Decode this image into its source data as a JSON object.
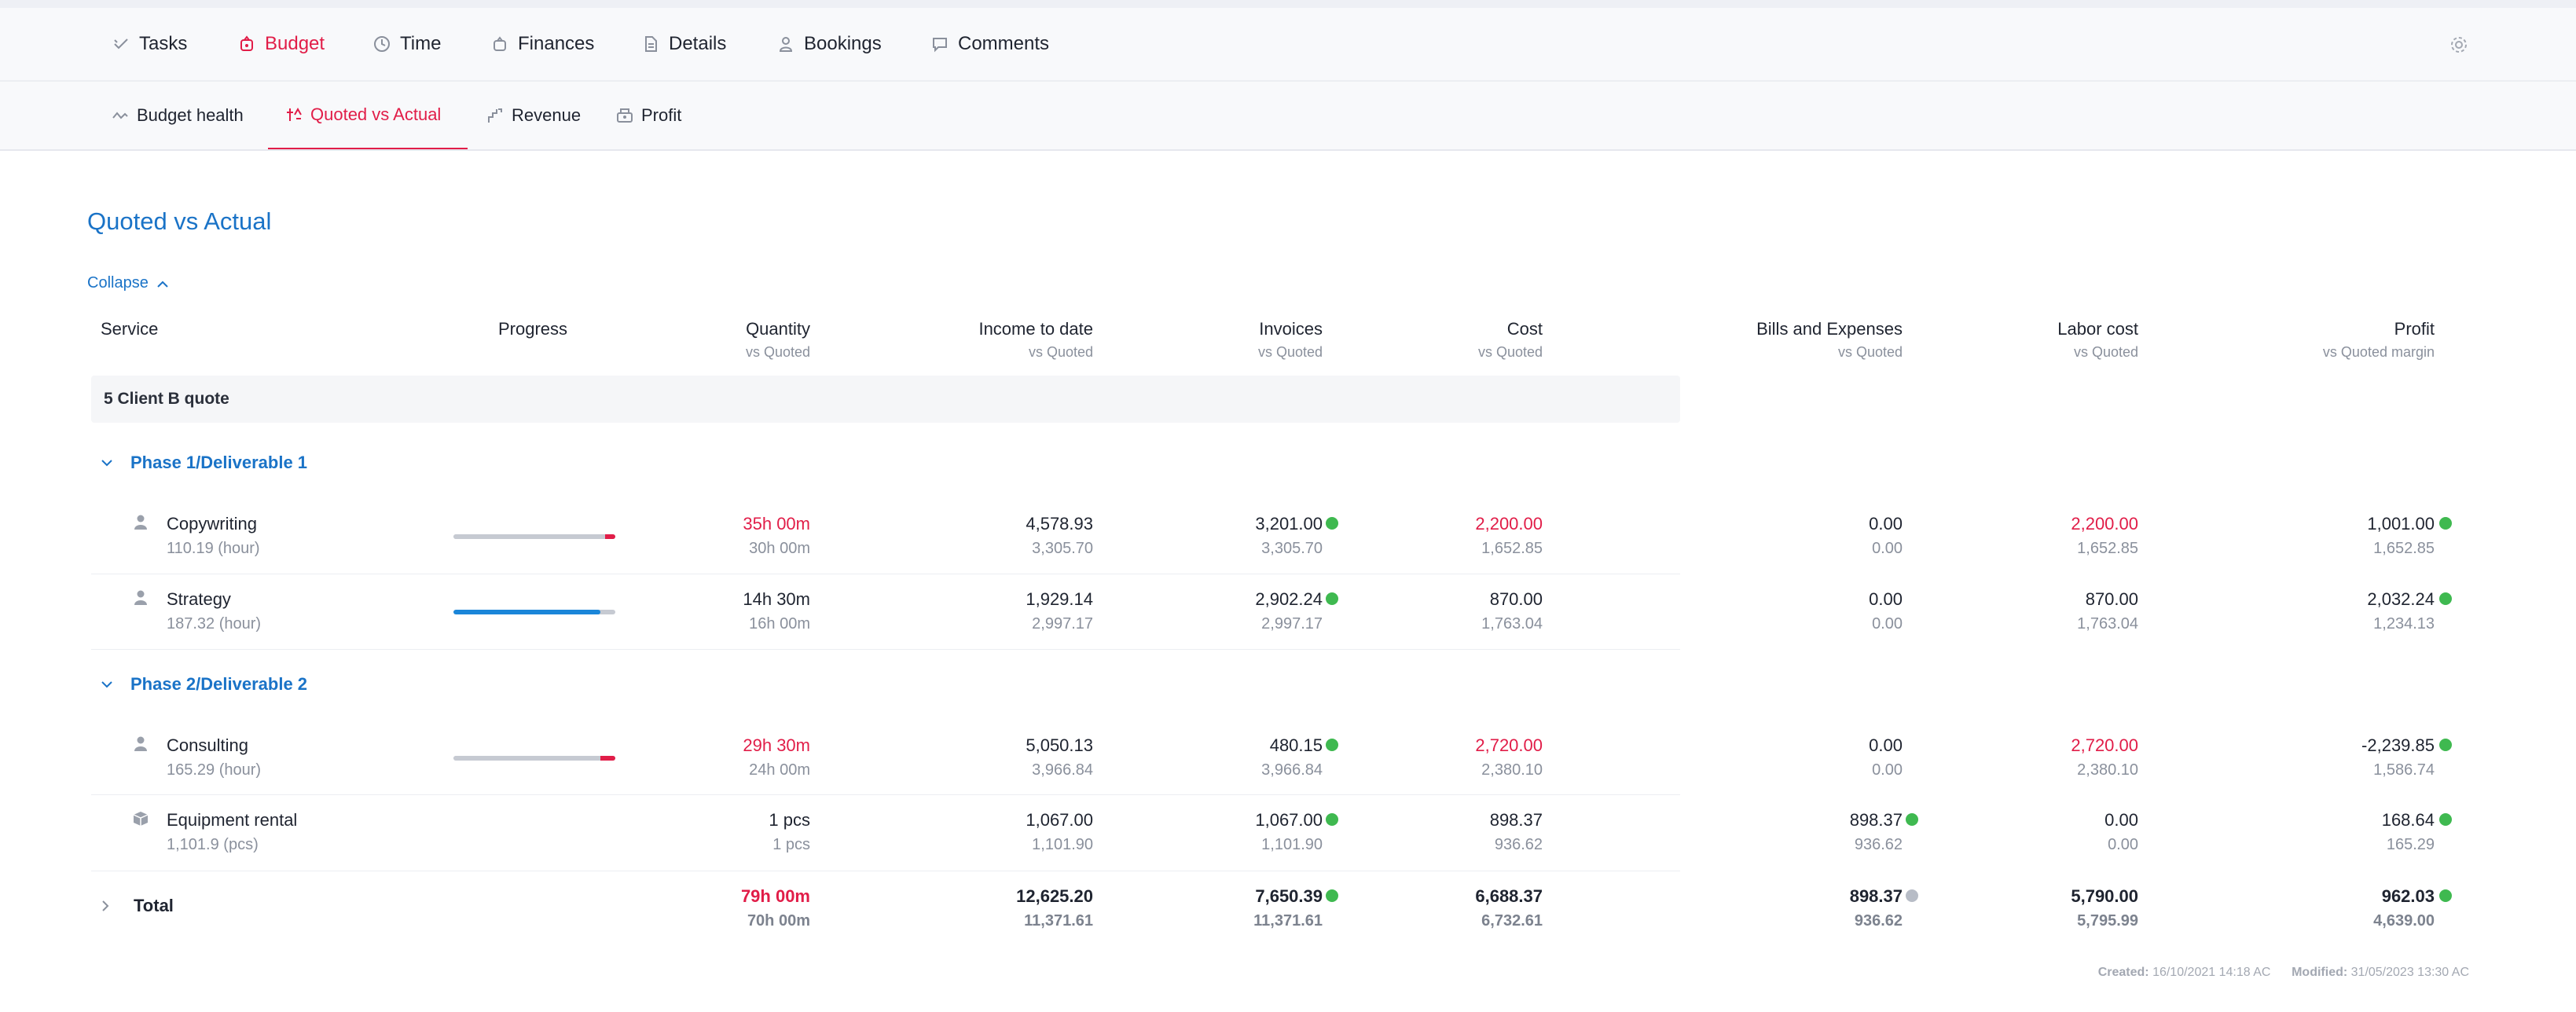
{
  "nav": {
    "tabs": [
      {
        "label": "Tasks",
        "icon": "tasks-icon"
      },
      {
        "label": "Budget",
        "icon": "budget-icon",
        "active": true
      },
      {
        "label": "Time",
        "icon": "clock-icon"
      },
      {
        "label": "Finances",
        "icon": "finances-icon"
      },
      {
        "label": "Details",
        "icon": "document-icon"
      },
      {
        "label": "Bookings",
        "icon": "person-icon"
      },
      {
        "label": "Comments",
        "icon": "comment-icon"
      }
    ],
    "settings_icon": "gear-icon"
  },
  "subnav": {
    "tabs": [
      {
        "label": "Budget health",
        "icon": "health-icon"
      },
      {
        "label": "Quoted vs Actual",
        "icon": "compare-icon",
        "active": true
      },
      {
        "label": "Revenue",
        "icon": "revenue-icon"
      },
      {
        "label": "Profit",
        "icon": "profit-icon"
      }
    ]
  },
  "page": {
    "title": "Quoted vs Actual",
    "collapse_label": "Collapse"
  },
  "columns": {
    "service": "Service",
    "progress": "Progress",
    "quantity": {
      "label": "Quantity",
      "sub": "vs Quoted"
    },
    "income": {
      "label": "Income to date",
      "sub": "vs Quoted"
    },
    "invoices": {
      "label": "Invoices",
      "sub": "vs Quoted"
    },
    "cost": {
      "label": "Cost",
      "sub": "vs Quoted"
    },
    "bills": {
      "label": "Bills and Expenses",
      "sub": "vs Quoted"
    },
    "labor": {
      "label": "Labor cost",
      "sub": "vs Quoted"
    },
    "profit": {
      "label": "Profit",
      "sub": "vs Quoted margin"
    }
  },
  "group": {
    "label": "5 Client B quote"
  },
  "phases": [
    {
      "label": "Phase 1/Deliverable 1"
    },
    {
      "label": "Phase 2/Deliverable 2"
    }
  ],
  "rows": [
    {
      "name": "Copywriting",
      "rate": "110.19 (hour)",
      "icon": "person-icon",
      "progress": 1.07,
      "qty": "35h 00m",
      "qty_q": "30h 00m",
      "income": "4,578.93",
      "income_q": "3,305.70",
      "invoices": "3,201.00",
      "invoices_q": "3,305.70",
      "cost": "2,200.00",
      "cost_q": "1,652.85",
      "bills": "0.00",
      "bills_q": "0.00",
      "labor": "2,200.00",
      "labor_q": "1,652.85",
      "profit": "1,001.00",
      "profit_q": "1,652.85"
    },
    {
      "name": "Strategy",
      "rate": "187.32 (hour)",
      "icon": "person-icon",
      "progress": 0.91,
      "qty": "14h 30m",
      "qty_q": "16h 00m",
      "income": "1,929.14",
      "income_q": "2,997.17",
      "invoices": "2,902.24",
      "invoices_q": "2,997.17",
      "cost": "870.00",
      "cost_q": "1,763.04",
      "bills": "0.00",
      "bills_q": "0.00",
      "labor": "870.00",
      "labor_q": "1,763.04",
      "profit": "2,032.24",
      "profit_q": "1,234.13"
    },
    {
      "name": "Consulting",
      "rate": "165.29 (hour)",
      "icon": "person-icon",
      "progress": 1.1,
      "qty": "29h 30m",
      "qty_q": "24h 00m",
      "income": "5,050.13",
      "income_q": "3,966.84",
      "invoices": "480.15",
      "invoices_q": "3,966.84",
      "cost": "2,720.00",
      "cost_q": "2,380.10",
      "bills": "0.00",
      "bills_q": "0.00",
      "labor": "2,720.00",
      "labor_q": "2,380.10",
      "profit": "-2,239.85",
      "profit_q": "1,586.74"
    },
    {
      "name": "Equipment rental",
      "rate": "1,101.9 (pcs)",
      "icon": "box-icon",
      "qty": "1 pcs",
      "qty_q": "1 pcs",
      "income": "1,067.00",
      "income_q": "1,101.90",
      "invoices": "1,067.00",
      "invoices_q": "1,101.90",
      "cost": "898.37",
      "cost_q": "936.62",
      "bills": "898.37",
      "bills_q": "936.62",
      "labor": "0.00",
      "labor_q": "0.00",
      "profit": "168.64",
      "profit_q": "165.29"
    }
  ],
  "total": {
    "label": "Total",
    "qty": "79h 00m",
    "qty_q": "70h 00m",
    "income": "12,625.20",
    "income_q": "11,371.61",
    "invoices": "7,650.39",
    "invoices_q": "11,371.61",
    "cost": "6,688.37",
    "cost_q": "6,732.61",
    "bills": "898.37",
    "bills_q": "936.62",
    "labor": "5,790.00",
    "labor_q": "5,795.99",
    "profit": "962.03",
    "profit_q": "4,639.00"
  },
  "footer": {
    "created_label": "Created:",
    "created": "16/10/2021 14:18 AC",
    "modified_label": "Modified:",
    "modified": "31/05/2023 13:30 AC"
  },
  "colors": {
    "accent": "#e11d48",
    "link": "#1a73c7",
    "ok": "#3fb950",
    "neutral": "#b7bcc6",
    "progress": "#1a86d9"
  }
}
